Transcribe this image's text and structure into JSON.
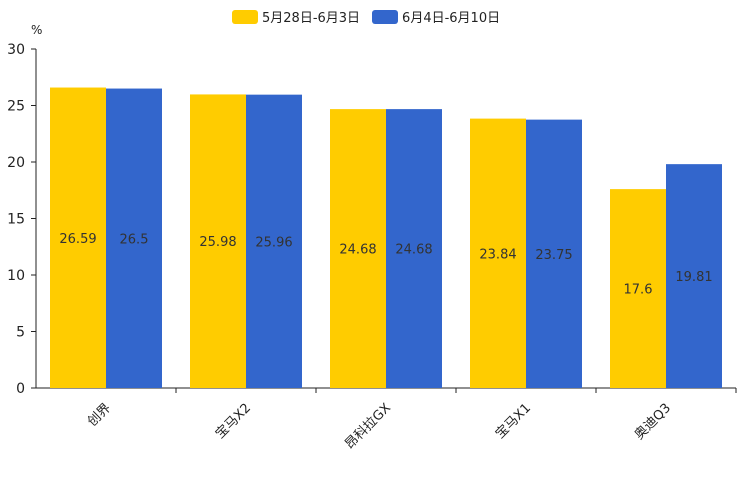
{
  "chart_data": {
    "type": "bar",
    "title": "",
    "xlabel": "",
    "ylabel": "%",
    "ylim": [
      0,
      30
    ],
    "yticks": [
      0,
      5,
      10,
      15,
      20,
      25,
      30
    ],
    "categories": [
      "创界",
      "宝马X2",
      "昂科拉GX",
      "宝马X1",
      "奥迪Q3"
    ],
    "series": [
      {
        "name": "5月28日-6月3日",
        "color": "#FFCC00",
        "values": [
          26.59,
          25.98,
          24.68,
          23.84,
          17.6
        ],
        "labels": [
          "26.59",
          "25.98",
          "24.68",
          "23.84",
          "17.6"
        ]
      },
      {
        "name": "6月4日-6月10日",
        "color": "#3366CC",
        "values": [
          26.5,
          25.96,
          24.68,
          23.75,
          19.81
        ],
        "labels": [
          "26.5",
          "25.96",
          "24.68",
          "23.75",
          "19.81"
        ]
      }
    ],
    "legend_position": "top-center",
    "grid": false
  }
}
